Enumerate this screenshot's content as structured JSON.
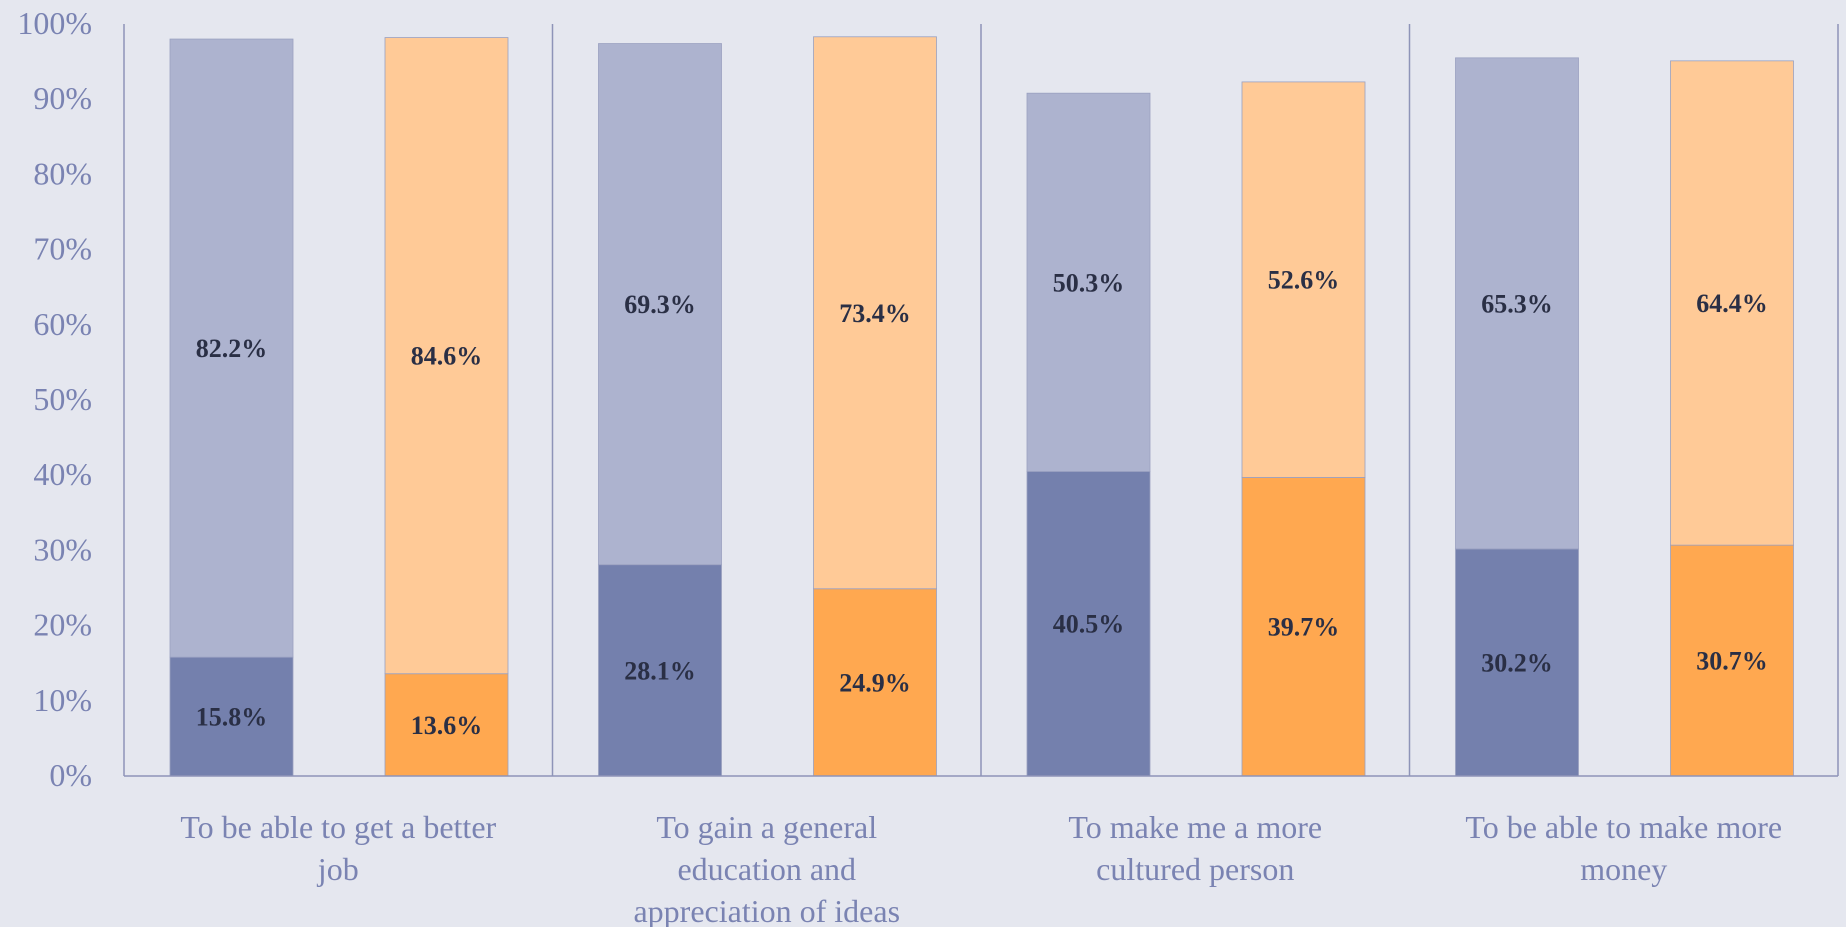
{
  "chart_data": {
    "type": "bar",
    "stacked": true,
    "categories": [
      "To be able to get a better job",
      "To gain a general education and appreciation of ideas",
      "To make me a more cultured person",
      "To be able to make more money"
    ],
    "category_lines": [
      [
        "To be able to get a better",
        "job"
      ],
      [
        "To gain a general",
        "education and",
        "appreciation of ideas"
      ],
      [
        "To make me a more",
        "cultured person"
      ],
      [
        "To be able to make more",
        "money"
      ]
    ],
    "groups": [
      {
        "stacks": [
          {
            "bottom": 15.8,
            "top": 82.2,
            "bottom_label": "15.8%",
            "top_label": "82.2%",
            "palette": "blue"
          },
          {
            "bottom": 13.6,
            "top": 84.6,
            "bottom_label": "13.6%",
            "top_label": "84.6%",
            "palette": "orange"
          }
        ]
      },
      {
        "stacks": [
          {
            "bottom": 28.1,
            "top": 69.3,
            "bottom_label": "28.1%",
            "top_label": "69.3%",
            "palette": "blue"
          },
          {
            "bottom": 24.9,
            "top": 73.4,
            "bottom_label": "24.9%",
            "top_label": "73.4%",
            "palette": "orange"
          }
        ]
      },
      {
        "stacks": [
          {
            "bottom": 40.5,
            "top": 50.3,
            "bottom_label": "40.5%",
            "top_label": "50.3%",
            "palette": "blue"
          },
          {
            "bottom": 39.7,
            "top": 52.6,
            "bottom_label": "39.7%",
            "top_label": "52.6%",
            "palette": "orange"
          }
        ]
      },
      {
        "stacks": [
          {
            "bottom": 30.2,
            "top": 65.3,
            "bottom_label": "30.2%",
            "top_label": "65.3%",
            "palette": "blue"
          },
          {
            "bottom": 30.7,
            "top": 64.4,
            "bottom_label": "30.7%",
            "top_label": "64.4%",
            "palette": "orange"
          }
        ]
      }
    ],
    "y_ticks": [
      "0%",
      "10%",
      "20%",
      "30%",
      "40%",
      "50%",
      "60%",
      "70%",
      "80%",
      "90%",
      "100%"
    ],
    "ylim": [
      0,
      100
    ],
    "grid": false,
    "legend": "none",
    "colors": {
      "blue_bottom": "#7480ad",
      "blue_top": "#adb3cf",
      "orange_bottom": "#ffa850",
      "orange_top": "#ffca97",
      "axis": "#8e94b8",
      "background": "#e5e7ef"
    }
  }
}
